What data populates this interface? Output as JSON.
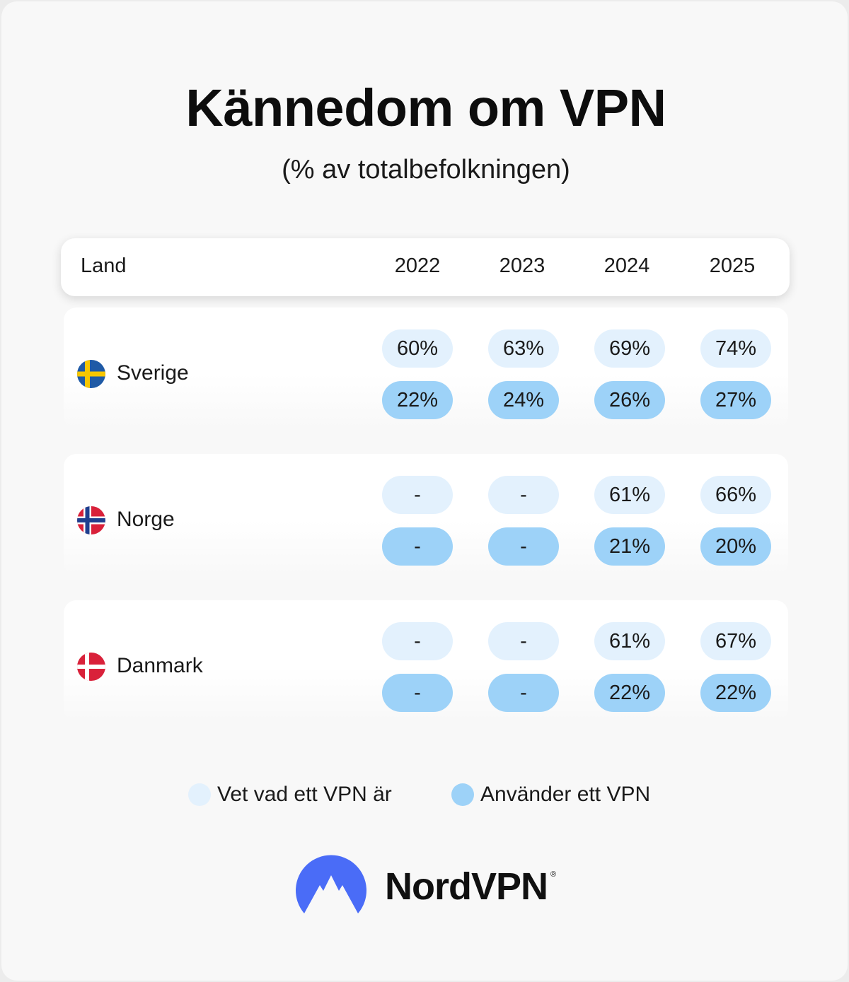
{
  "title": "Kännedom om VPN",
  "subtitle": "(% av totalbefolkningen)",
  "chart_data": {
    "type": "table",
    "title": "Kännedom om VPN",
    "subtitle": "(% av totalbefolkningen)",
    "header_label": "Land",
    "columns": [
      "2022",
      "2023",
      "2024",
      "2025"
    ],
    "rows": [
      {
        "country": "Sverige",
        "flag": "sweden-flag-icon",
        "aware": [
          "60%",
          "63%",
          "69%",
          "74%"
        ],
        "uses": [
          "22%",
          "24%",
          "26%",
          "27%"
        ]
      },
      {
        "country": "Norge",
        "flag": "norway-flag-icon",
        "aware": [
          "-",
          "-",
          "61%",
          "66%"
        ],
        "uses": [
          "-",
          "-",
          "21%",
          "20%"
        ]
      },
      {
        "country": "Danmark",
        "flag": "denmark-flag-icon",
        "aware": [
          "-",
          "-",
          "61%",
          "67%"
        ],
        "uses": [
          "-",
          "-",
          "22%",
          "22%"
        ]
      }
    ],
    "legend": [
      {
        "label": "Vet vad ett VPN är",
        "color": "#e3f1fd"
      },
      {
        "label": "Använder ett VPN",
        "color": "#9dd2f8"
      }
    ]
  },
  "brand": {
    "name": "NordVPN",
    "mark": "®",
    "logo_icon": "nordvpn-mountain-logo-icon",
    "logo_color": "#4a6cf7"
  }
}
